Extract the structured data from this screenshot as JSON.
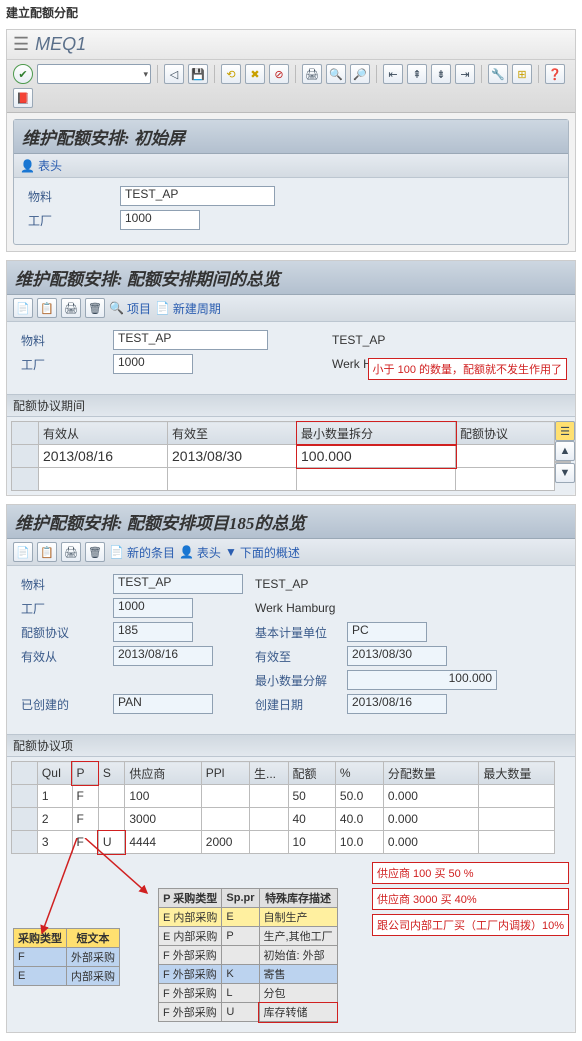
{
  "page_title": "建立配额分配",
  "tcode": "MEQ1",
  "main_toolbar": {
    "icons": [
      "✓",
      "◁",
      "💾",
      "⟲",
      "✖",
      "⊘",
      "🖨",
      "🔍",
      "🔎",
      "📋",
      "📋",
      "📋",
      "📋",
      "🔧",
      "⊞",
      "❓",
      "📕"
    ]
  },
  "panel1": {
    "title": "维护配额安排: 初始屏",
    "link_header": "表头",
    "material_label": "物料",
    "material_value": "TEST_AP",
    "plant_label": "工厂",
    "plant_value": "1000"
  },
  "panel2": {
    "title": "维护配额安排: 配额安排期间的总览",
    "toolbar": {
      "item_label": "项目",
      "new_period_label": "新建周期"
    },
    "material_label": "物料",
    "material_value": "TEST_AP",
    "material_desc": "TEST_AP",
    "plant_label": "工厂",
    "plant_value": "1000",
    "plant_desc": "Werk Hamburg",
    "note": "小于 100 的数量，配额就不发生作用了",
    "section_title": "配额协议期间",
    "columns": [
      "有效从",
      "有效至",
      "最小数量拆分",
      "配额协议"
    ],
    "row": {
      "valid_from": "2013/08/16",
      "valid_to": "2013/08/30",
      "min_split": "100.000",
      "agreement": ""
    }
  },
  "panel3": {
    "title": "维护配额安排: 配额安排项目185的总览",
    "toolbar": {
      "new_entry": "新的条目",
      "header": "表头",
      "overview": "下面的概述"
    },
    "fields": {
      "material_label": "物料",
      "material_value": "TEST_AP",
      "material_desc": "TEST_AP",
      "plant_label": "工厂",
      "plant_value": "1000",
      "plant_desc": "Werk Hamburg",
      "agreement_label": "配额协议",
      "agreement_value": "185",
      "uom_label": "基本计量单位",
      "uom_value": "PC",
      "valid_from_label": "有效从",
      "valid_from": "2013/08/16",
      "valid_to_label": "有效至",
      "valid_to": "2013/08/30",
      "min_split_label": "最小数量分解",
      "min_split": "100.000",
      "created_by_label": "已创建的",
      "created_by": "PAN",
      "created_on_label": "创建日期",
      "created_on": "2013/08/16"
    },
    "section_title": "配额协议项",
    "columns": [
      "QuI",
      "P",
      "S",
      "供应商",
      "PPl",
      "生...",
      "配额",
      "%",
      "分配数量",
      "最大数量"
    ],
    "rows": [
      {
        "q": "1",
        "p": "F",
        "s": "",
        "vendor": "100",
        "ppl": "",
        "prod": "",
        "quota": "50",
        "pct": "50.0",
        "alloc": "0.000",
        "max": ""
      },
      {
        "q": "2",
        "p": "F",
        "s": "",
        "vendor": "3000",
        "ppl": "",
        "prod": "",
        "quota": "40",
        "pct": "40.0",
        "alloc": "0.000",
        "max": ""
      },
      {
        "q": "3",
        "p": "F",
        "s": "U",
        "vendor": "4444",
        "ppl": "2000",
        "prod": "",
        "quota": "10",
        "pct": "10.0",
        "alloc": "0.000",
        "max": ""
      }
    ],
    "notes": [
      "供应商 100 买 50 %",
      "供应商 3000 买 40%",
      "跟公司内部工厂买（工厂内调拨）10%"
    ]
  },
  "helper1": {
    "columns": [
      "P 采购类型",
      "Sp.pr",
      "特殊库存描述"
    ],
    "rows": [
      {
        "p": "E 内部采购",
        "sp": "E",
        "desc": "自制生产",
        "cls": "yellow-row"
      },
      {
        "p": "E 内部采购",
        "sp": "P",
        "desc": "生产,其他工厂",
        "cls": "gray-row"
      },
      {
        "p": "F 外部采购",
        "sp": "",
        "desc": "初始值: 外部",
        "cls": "gray-row"
      },
      {
        "p": "F 外部采购",
        "sp": "K",
        "desc": "寄售",
        "cls": "blue-row"
      },
      {
        "p": "F 外部采购",
        "sp": "L",
        "desc": "分包",
        "cls": "gray-row"
      },
      {
        "p": "F 外部采购",
        "sp": "U",
        "desc": "库存转储",
        "cls": "gray-row"
      }
    ]
  },
  "helper2": {
    "columns": [
      "采购类型",
      "短文本"
    ],
    "rows": [
      {
        "t": "F",
        "d": "外部采购",
        "cls": "blue-row"
      },
      {
        "t": "E",
        "d": "内部采购",
        "cls": "blue-row"
      }
    ]
  }
}
